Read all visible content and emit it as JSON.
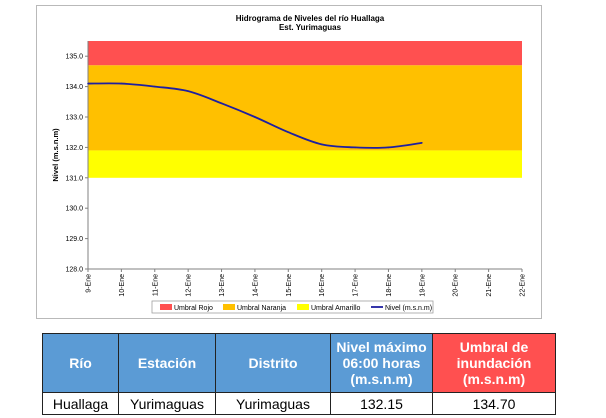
{
  "chart_data": {
    "type": "line",
    "title": "Hidrograma de Niveles del río Huallaga",
    "subtitle": "Est. Yurimaguas",
    "ylabel": "Nivel (m.s.n.m)",
    "xlabel": "",
    "ylim": [
      128.0,
      135.5
    ],
    "yticks": [
      "128.0",
      "129.0",
      "130.0",
      "131.0",
      "132.0",
      "133.0",
      "134.0",
      "135.0"
    ],
    "categories": [
      "9-Ene",
      "10-Ene",
      "11-Ene",
      "12-Ene",
      "13-Ene",
      "14-Ene",
      "15-Ene",
      "16-Ene",
      "17-Ene",
      "18-Ene",
      "19-Ene",
      "20-Ene",
      "21-Ene",
      "22-Ene"
    ],
    "bands": [
      {
        "name": "Umbral Rojo",
        "from": 134.7,
        "to": 135.5,
        "color": "#ff5050"
      },
      {
        "name": "Umbral Naranja",
        "from": 131.9,
        "to": 134.7,
        "color": "#ffc000"
      },
      {
        "name": "Umbral Amarillo",
        "from": 131.0,
        "to": 131.9,
        "color": "#ffff00"
      }
    ],
    "series": [
      {
        "name": "Nivel (m.s.n.m)",
        "color": "#1f1fa0",
        "x": [
          "9-Ene",
          "10-Ene",
          "11-Ene",
          "12-Ene",
          "13-Ene",
          "14-Ene",
          "15-Ene",
          "16-Ene",
          "17-Ene",
          "18-Ene",
          "19-Ene"
        ],
        "values": [
          134.1,
          134.1,
          134.0,
          133.85,
          133.45,
          133.0,
          132.5,
          132.1,
          132.0,
          132.0,
          132.15
        ]
      }
    ],
    "legend": [
      "Umbral Rojo",
      "Umbral Naranja",
      "Umbral Amarillo",
      "Nivel (m.s.n.m)"
    ],
    "legend_position": "bottom",
    "grid": false
  },
  "table": {
    "headers": [
      "Río",
      "Estación",
      "Distrito",
      "Nivel máximo 06:00 horas (m.s.n.m)",
      "Umbral de inundación (m.s.n.m)"
    ],
    "header_colors": [
      "#5b9bd5",
      "#5b9bd5",
      "#5b9bd5",
      "#5b9bd5",
      "#ff5050"
    ],
    "row": [
      "Huallaga",
      "Yurimaguas",
      "Yurimaguas",
      "132.15",
      "134.70"
    ]
  }
}
